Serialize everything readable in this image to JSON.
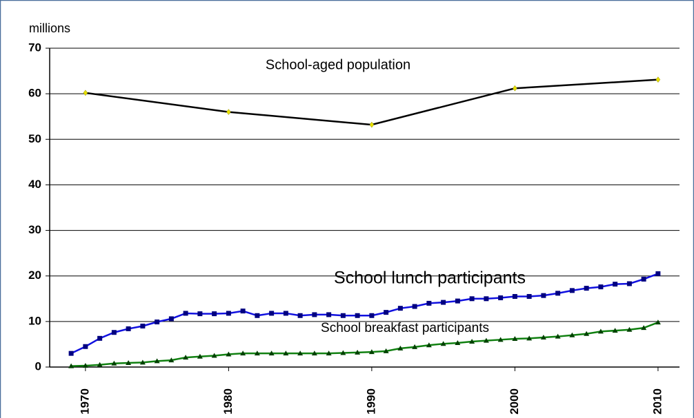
{
  "chart_data": {
    "type": "line",
    "y_label": "millions",
    "xlim": [
      1967.5,
      2011.5
    ],
    "xticks": [
      1970,
      1980,
      1990,
      2000,
      2010
    ],
    "ylim": [
      0,
      70
    ],
    "yticks": [
      0,
      10,
      20,
      30,
      40,
      50,
      60,
      70
    ],
    "grid": true,
    "series": [
      {
        "name": "School-aged population",
        "color": "#000000",
        "marker_color": "#e8e000",
        "marker": "diamond",
        "x": [
          1970,
          1980,
          1990,
          2000,
          2010
        ],
        "values": [
          60.2,
          56,
          53.2,
          61.2,
          63.1
        ]
      },
      {
        "name": "School lunch participants",
        "color": "#1010e0",
        "marker_color": "#000080",
        "marker": "square",
        "x": [
          1969,
          1970,
          1971,
          1972,
          1973,
          1974,
          1975,
          1976,
          1977,
          1978,
          1979,
          1980,
          1981,
          1982,
          1983,
          1984,
          1985,
          1986,
          1987,
          1988,
          1989,
          1990,
          1991,
          1992,
          1993,
          1994,
          1995,
          1996,
          1997,
          1998,
          1999,
          2000,
          2001,
          2002,
          2003,
          2004,
          2005,
          2006,
          2007,
          2008,
          2009,
          2010
        ],
        "values": [
          3.0,
          4.5,
          6.3,
          7.6,
          8.4,
          9.0,
          9.9,
          10.6,
          11.8,
          11.7,
          11.7,
          11.8,
          12.3,
          11.3,
          11.8,
          11.8,
          11.3,
          11.5,
          11.5,
          11.3,
          11.3,
          11.3,
          12.0,
          12.9,
          13.3,
          14.0,
          14.2,
          14.5,
          15.0,
          15.0,
          15.2,
          15.5,
          15.5,
          15.7,
          16.2,
          16.8,
          17.3,
          17.6,
          18.2,
          18.3,
          19.3,
          20.5
        ]
      },
      {
        "name": "School breakfast participants",
        "color": "#108010",
        "marker_color": "#004000",
        "marker": "triangle",
        "x": [
          1969,
          1970,
          1971,
          1972,
          1973,
          1974,
          1975,
          1976,
          1977,
          1978,
          1979,
          1980,
          1981,
          1982,
          1983,
          1984,
          1985,
          1986,
          1987,
          1988,
          1989,
          1990,
          1991,
          1992,
          1993,
          1994,
          1995,
          1996,
          1997,
          1998,
          1999,
          2000,
          2001,
          2002,
          2003,
          2004,
          2005,
          2006,
          2007,
          2008,
          2009,
          2010
        ],
        "values": [
          0.2,
          0.3,
          0.5,
          0.8,
          0.9,
          1.0,
          1.3,
          1.5,
          2.1,
          2.3,
          2.5,
          2.8,
          3.0,
          3.0,
          3.0,
          3.0,
          3.0,
          3.0,
          3.0,
          3.1,
          3.2,
          3.3,
          3.5,
          4.1,
          4.4,
          4.8,
          5.1,
          5.3,
          5.6,
          5.8,
          6.0,
          6.2,
          6.3,
          6.5,
          6.7,
          7.0,
          7.3,
          7.8,
          8.0,
          8.2,
          8.6,
          9.8
        ]
      }
    ]
  }
}
